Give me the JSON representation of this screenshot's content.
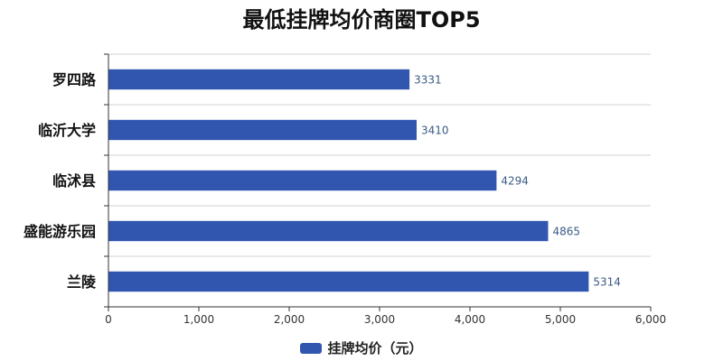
{
  "chart_data": {
    "type": "bar",
    "orientation": "horizontal",
    "title": "最低挂牌均价商圈TOP5",
    "categories": [
      "罗四路",
      "临沂大学",
      "临沭县",
      "盛能游乐园",
      "兰陵"
    ],
    "series": [
      {
        "name": "挂牌均价（元）",
        "values": [
          3331,
          3410,
          4294,
          4865,
          5314
        ]
      }
    ],
    "xlim": [
      0,
      6000
    ],
    "xticks": [
      0,
      1000,
      2000,
      3000,
      4000,
      5000,
      6000
    ],
    "xtick_labels": [
      "0",
      "1,000",
      "2,000",
      "3,000",
      "4,000",
      "5,000",
      "6,000"
    ],
    "grid": "horizontal category separators",
    "legend": "bottom-center",
    "bar_color": "#3156b0",
    "value_label_color": "#3b5a85"
  }
}
